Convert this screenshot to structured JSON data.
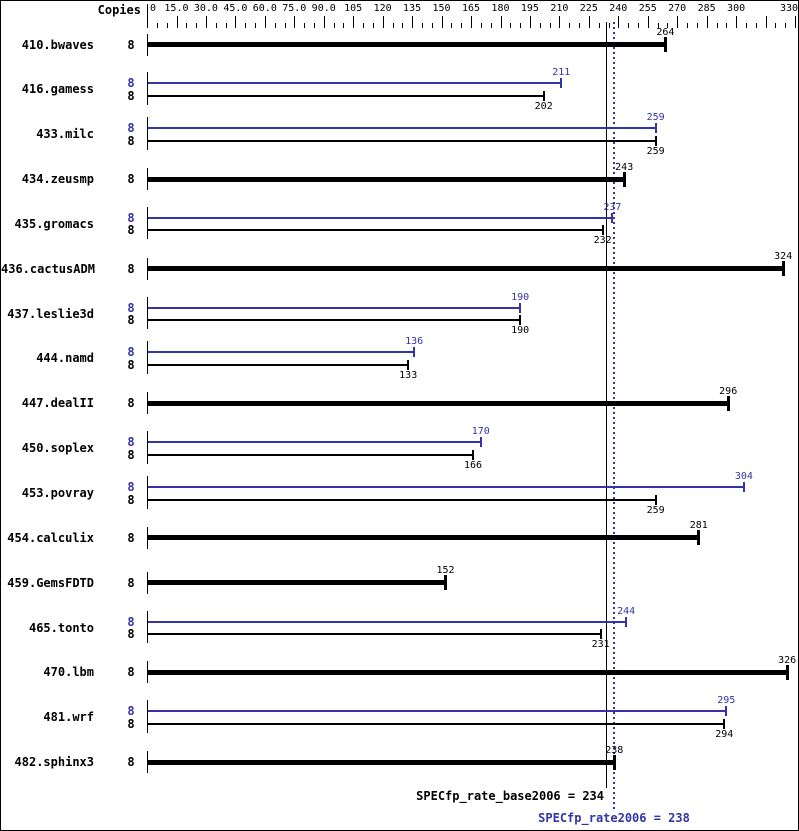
{
  "chart_data": {
    "type": "bar",
    "orientation": "horizontal",
    "title": "",
    "copies_header": "Copies",
    "legend": {
      "peak_series": "SPECfp_rate2006 (peak, blue)",
      "base_series": "SPECfp_rate_base2006 (base, black)"
    },
    "x_axis": {
      "min": 0,
      "max": 330,
      "major_tick_step": 15,
      "minor_tick_step": 5,
      "tick_labels": [
        {
          "value": 0,
          "label": "0",
          "align": "left"
        },
        {
          "value": 15,
          "label": "15.0"
        },
        {
          "value": 30,
          "label": "30.0"
        },
        {
          "value": 45,
          "label": "45.0"
        },
        {
          "value": 60,
          "label": "60.0"
        },
        {
          "value": 75,
          "label": "75.0"
        },
        {
          "value": 90,
          "label": "90.0"
        },
        {
          "value": 105,
          "label": "105"
        },
        {
          "value": 120,
          "label": "120"
        },
        {
          "value": 135,
          "label": "135"
        },
        {
          "value": 150,
          "label": "150"
        },
        {
          "value": 165,
          "label": "165"
        },
        {
          "value": 180,
          "label": "180"
        },
        {
          "value": 195,
          "label": "195"
        },
        {
          "value": 210,
          "label": "210"
        },
        {
          "value": 225,
          "label": "225"
        },
        {
          "value": 240,
          "label": "240"
        },
        {
          "value": 255,
          "label": "255"
        },
        {
          "value": 270,
          "label": "270"
        },
        {
          "value": 285,
          "label": "285"
        },
        {
          "value": 300,
          "label": "300"
        },
        {
          "value": 330,
          "label": "330",
          "align": "right"
        }
      ]
    },
    "series_colors": {
      "base": "#000000",
      "peak": "#3333AA"
    },
    "benchmarks": [
      {
        "name": "410.bwaves",
        "copies": 8,
        "peak": null,
        "base": 264
      },
      {
        "name": "416.gamess",
        "copies": 8,
        "peak": 211,
        "base": 202
      },
      {
        "name": "433.milc",
        "copies": 8,
        "peak": 259,
        "base": 259
      },
      {
        "name": "434.zeusmp",
        "copies": 8,
        "peak": null,
        "base": 243
      },
      {
        "name": "435.gromacs",
        "copies": 8,
        "peak": 237,
        "base": 232
      },
      {
        "name": "436.cactusADM",
        "copies": 8,
        "peak": null,
        "base": 324
      },
      {
        "name": "437.leslie3d",
        "copies": 8,
        "peak": 190,
        "base": 190
      },
      {
        "name": "444.namd",
        "copies": 8,
        "peak": 136,
        "base": 133
      },
      {
        "name": "447.dealII",
        "copies": 8,
        "peak": null,
        "base": 296
      },
      {
        "name": "450.soplex",
        "copies": 8,
        "peak": 170,
        "base": 166
      },
      {
        "name": "453.povray",
        "copies": 8,
        "peak": 304,
        "base": 259
      },
      {
        "name": "454.calculix",
        "copies": 8,
        "peak": null,
        "base": 281
      },
      {
        "name": "459.GemsFDTD",
        "copies": 8,
        "peak": null,
        "base": 152
      },
      {
        "name": "465.tonto",
        "copies": 8,
        "peak": 244,
        "base": 231
      },
      {
        "name": "470.lbm",
        "copies": 8,
        "peak": null,
        "base": 326
      },
      {
        "name": "481.wrf",
        "copies": 8,
        "peak": 295,
        "base": 294
      },
      {
        "name": "482.sphinx3",
        "copies": 8,
        "peak": null,
        "base": 238
      }
    ],
    "reference_lines": [
      {
        "name": "SPECfp_rate_base2006",
        "label": "SPECfp_rate_base2006 = 234",
        "value": 234,
        "style": "solid",
        "color": "#000000"
      },
      {
        "name": "SPECfp_rate2006",
        "label": "SPECfp_rate2006 = 238",
        "value": 238,
        "style": "dotted",
        "color": "#3333AA"
      }
    ]
  }
}
